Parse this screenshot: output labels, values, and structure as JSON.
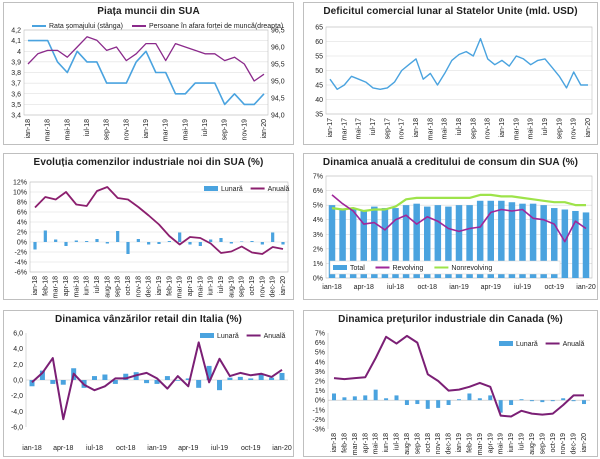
{
  "chart_data": [
    {
      "type": "line",
      "title": "Piața muncii din SUA",
      "categories": [
        "ian-18",
        "feb-18",
        "mar-18",
        "apr-18",
        "mai-18",
        "iun-18",
        "iul-18",
        "aug-18",
        "sep-18",
        "oct-18",
        "nov-18",
        "dec-18",
        "ian-19",
        "feb-19",
        "mar-19",
        "apr-19",
        "mai-19",
        "iun-19",
        "iul-19",
        "aug-19",
        "sep-19",
        "oct-19",
        "nov-19",
        "dec-19",
        "ian-20"
      ],
      "xticks": [
        "ian-18",
        "mar-18",
        "mai-18",
        "iul-18",
        "sep-18",
        "nov-18",
        "ian-19",
        "mar-19",
        "mai-19",
        "iul-19",
        "sep-19",
        "nov-19",
        "ian-20"
      ],
      "y_left": {
        "ylim": [
          3.4,
          4.2
        ],
        "ticks": [
          "4,2",
          "4,1",
          "4",
          "3,9",
          "3,8",
          "3,7",
          "3,6",
          "3,5",
          "3,4"
        ]
      },
      "y_right": {
        "ylim": [
          94.0,
          96.5
        ],
        "ticks": [
          "96,5",
          "96,0",
          "95,5",
          "95,0",
          "94,5",
          "94,0"
        ]
      },
      "series": [
        {
          "name": "Rata șomajului (stânga)",
          "axis": "left",
          "color": "#4aa3df",
          "values": [
            4.1,
            4.1,
            4.1,
            3.9,
            3.8,
            4.0,
            3.9,
            3.9,
            3.7,
            3.7,
            3.7,
            3.9,
            4.0,
            3.8,
            3.8,
            3.6,
            3.6,
            3.7,
            3.7,
            3.7,
            3.5,
            3.6,
            3.5,
            3.5,
            3.6
          ]
        },
        {
          "name": "Persoane în afara forței de muncă(dreapta)",
          "axis": "right",
          "color": "#8b2a8b",
          "values": [
            95.5,
            95.8,
            95.9,
            95.9,
            95.7,
            96.0,
            96.3,
            96.2,
            95.9,
            96.0,
            95.6,
            95.8,
            96.1,
            96.1,
            95.6,
            96.1,
            96.0,
            95.9,
            95.8,
            95.8,
            95.6,
            95.7,
            95.5,
            95.0,
            95.2
          ]
        }
      ]
    },
    {
      "type": "line",
      "title": "Deficitul comercial lunar al Statelor Unite (mld. USD)",
      "categories": [
        "ian-17",
        "feb-17",
        "mar-17",
        "apr-17",
        "mai-17",
        "iun-17",
        "iul-17",
        "aug-17",
        "sep-17",
        "oct-17",
        "nov-17",
        "dec-17",
        "ian-18",
        "feb-18",
        "mar-18",
        "apr-18",
        "mai-18",
        "iun-18",
        "iul-18",
        "aug-18",
        "sep-18",
        "oct-18",
        "nov-18",
        "dec-18",
        "ian-19",
        "feb-19",
        "mar-19",
        "apr-19",
        "mai-19",
        "iun-19",
        "iul-19",
        "aug-19",
        "sep-19",
        "oct-19",
        "nov-19",
        "dec-19",
        "ian-20"
      ],
      "xticks": [
        "ian-17",
        "mar-17",
        "mai-17",
        "iul-17",
        "sep-17",
        "nov-17",
        "ian-18",
        "mar-18",
        "mai-18",
        "iul-18",
        "sep-18",
        "nov-18",
        "ian-19",
        "mar-19",
        "mai-19",
        "iul-19",
        "sep-19",
        "nov-19",
        "ian-20"
      ],
      "ylim": [
        0,
        65
      ],
      "yticks": [
        "65",
        "60",
        "55",
        "50",
        "45",
        "40",
        "35",
        "30",
        "25",
        "20",
        "15",
        "10",
        "5",
        "0"
      ],
      "series": [
        {
          "name": "Deficit",
          "color": "#4aa3df",
          "values": [
            47,
            43.5,
            45,
            48,
            47,
            46,
            44,
            43.5,
            44,
            46,
            50,
            52,
            54,
            47,
            49,
            45,
            49,
            53.5,
            55.5,
            56.5,
            55,
            61,
            54,
            52,
            53.5,
            51.5,
            55,
            54,
            52,
            53.5,
            54,
            51,
            48,
            44,
            49.5,
            45,
            45
          ]
        }
      ]
    },
    {
      "type": "bar+line",
      "title": "Evoluția comenzilor industriale noi din SUA (%)",
      "categories": [
        "ian-18",
        "feb-18",
        "mar-18",
        "apr-18",
        "mai-18",
        "iun-18",
        "iul-18",
        "aug-18",
        "sep-18",
        "oct-18",
        "nov-18",
        "dec-18",
        "ian-19",
        "feb-19",
        "mar-19",
        "apr-19",
        "mai-19",
        "iun-19",
        "iul-19",
        "aug-19",
        "sep-19",
        "oct-19",
        "nov-19",
        "dec-19",
        "ian-20"
      ],
      "ylim": [
        -6,
        12
      ],
      "yticks": [
        "12%",
        "10%",
        "8%",
        "6%",
        "4%",
        "2%",
        "0%",
        "-2%",
        "-4%",
        "-6%"
      ],
      "legend": [
        "Lunară",
        "Anuală"
      ],
      "series": [
        {
          "name": "Lunară",
          "kind": "bar",
          "color": "#4aa3df",
          "values": [
            -1.5,
            2.3,
            0.5,
            -0.8,
            0.3,
            0.2,
            0.6,
            -0.3,
            2.2,
            -2.4,
            0.6,
            -0.5,
            -0.4,
            0.2,
            1.9,
            -0.5,
            -0.8,
            0.5,
            0.8,
            -0.3,
            0.1,
            0.2,
            -0.5,
            1.9,
            -0.5
          ]
        },
        {
          "name": "Anuală",
          "kind": "line",
          "color": "#8b1f6e",
          "values": [
            6.9,
            9.0,
            8.5,
            10.0,
            7.5,
            7.2,
            10.2,
            11.0,
            8.8,
            8.5,
            7.0,
            5.3,
            3.5,
            1.2,
            -0.5,
            1.0,
            0.8,
            -0.3,
            -2.2,
            -1.9,
            -0.9,
            -2.1,
            -2.4,
            -1.0,
            -1.4
          ]
        }
      ]
    },
    {
      "type": "bar+line",
      "title": "Dinamica anuală a creditului de consum din SUA (%)",
      "categories": [
        "ian-18",
        "feb-18",
        "mar-18",
        "apr-18",
        "mai-18",
        "iun-18",
        "iul-18",
        "aug-18",
        "sep-18",
        "oct-18",
        "nov-18",
        "dec-18",
        "ian-19",
        "feb-19",
        "mar-19",
        "apr-19",
        "mai-19",
        "iun-19",
        "iul-19",
        "aug-19",
        "sep-19",
        "oct-19",
        "nov-19",
        "dec-19",
        "ian-20"
      ],
      "xticks": [
        "ian-18",
        "apr-18",
        "iul-18",
        "oct-18",
        "ian-19",
        "apr-19",
        "iul-19",
        "oct-19",
        "ian-20"
      ],
      "ylim": [
        0,
        7
      ],
      "yticks": [
        "7%",
        "6%",
        "5%",
        "4%",
        "3%",
        "2%",
        "1%",
        "0%"
      ],
      "legend": [
        "Total",
        "Revolving",
        "Nonrevolving"
      ],
      "series": [
        {
          "name": "Total",
          "kind": "bar",
          "color": "#4aa3df",
          "values": [
            5.0,
            4.7,
            4.8,
            4.6,
            4.9,
            4.8,
            4.8,
            5.0,
            5.1,
            4.9,
            5.0,
            4.9,
            5.0,
            5.0,
            5.3,
            5.3,
            5.3,
            5.2,
            5.1,
            5.1,
            5.0,
            4.8,
            4.7,
            4.6,
            4.5
          ]
        },
        {
          "name": "Revolving",
          "kind": "line",
          "color": "#a0279a",
          "values": [
            5.7,
            5.1,
            4.6,
            3.7,
            3.8,
            3.3,
            4.0,
            4.3,
            3.7,
            4.2,
            3.9,
            3.4,
            3.2,
            3.4,
            3.5,
            4.5,
            4.7,
            4.6,
            4.7,
            4.1,
            4.0,
            3.7,
            2.5,
            3.9,
            3.4
          ]
        },
        {
          "name": "Nonrevolving",
          "kind": "line",
          "color": "#9ee34a",
          "values": [
            4.8,
            4.7,
            4.8,
            4.6,
            4.7,
            4.7,
            4.9,
            5.4,
            5.5,
            5.5,
            5.5,
            5.5,
            5.5,
            5.5,
            5.7,
            5.7,
            5.6,
            5.6,
            5.5,
            5.4,
            5.3,
            5.2,
            5.2,
            5.0,
            5.0
          ]
        }
      ]
    },
    {
      "type": "bar+line",
      "title": "Dinamica vânzărilor retail din Italia (%)",
      "categories": [
        "ian-18",
        "feb-18",
        "mar-18",
        "apr-18",
        "mai-18",
        "iun-18",
        "iul-18",
        "aug-18",
        "sep-18",
        "oct-18",
        "nov-18",
        "dec-18",
        "ian-19",
        "feb-19",
        "mar-19",
        "apr-19",
        "mai-19",
        "iun-19",
        "iul-19",
        "aug-19",
        "sep-19",
        "oct-19",
        "nov-19",
        "dec-19",
        "ian-20"
      ],
      "xticks": [
        "ian-18",
        "apr-18",
        "iul-18",
        "oct-18",
        "ian-19",
        "apr-19",
        "iul-19",
        "oct-19",
        "ian-20"
      ],
      "ylim": [
        -6,
        6
      ],
      "yticks": [
        "6,0",
        "4,0",
        "2,0",
        "0,0",
        "-2,0",
        "-4,0",
        "-6,0"
      ],
      "legend": [
        "Lunară",
        "Anuală"
      ],
      "series": [
        {
          "name": "Lunară",
          "kind": "bar",
          "color": "#4aa3df",
          "values": [
            -0.8,
            1.2,
            -0.5,
            -0.6,
            1.5,
            -1.0,
            0.5,
            0.7,
            -0.5,
            0.8,
            1.0,
            -0.4,
            -0.5,
            0.5,
            -0.1,
            0.2,
            -1.0,
            1.8,
            -1.3,
            0.3,
            0.4,
            0.2,
            0.7,
            0.3,
            0.9
          ]
        },
        {
          "name": "Anuală",
          "kind": "line",
          "color": "#7b1f75",
          "values": [
            -0.3,
            0.9,
            2.8,
            -5.0,
            0.8,
            -0.6,
            -1.3,
            -0.8,
            0.2,
            0.2,
            0.6,
            0.9,
            0.2,
            -1.1,
            0.5,
            -0.8,
            4.8,
            -0.3,
            2.7,
            0.5,
            0.9,
            0.6,
            0.8,
            0.4,
            1.3
          ]
        }
      ]
    },
    {
      "type": "bar+line",
      "title": "Dinamica prețurilor industriale din Canada (%)",
      "categories": [
        "ian-18",
        "feb-18",
        "mar-18",
        "apr-18",
        "mai-18",
        "iun-18",
        "iul-18",
        "aug-18",
        "sep-18",
        "oct-18",
        "nov-18",
        "dec-18",
        "ian-19",
        "feb-19",
        "mar-19",
        "apr-19",
        "mai-19",
        "iun-19",
        "iul-19",
        "aug-19",
        "sep-19",
        "oct-19",
        "nov-19",
        "dec-19",
        "ian-20"
      ],
      "ylim": [
        -3,
        7
      ],
      "yticks": [
        "7%",
        "6%",
        "5%",
        "4%",
        "3%",
        "2%",
        "1%",
        "0%",
        "-1%",
        "-2%",
        "-3%"
      ],
      "legend": [
        "Lunară",
        "Anuală"
      ],
      "series": [
        {
          "name": "Lunară",
          "kind": "bar",
          "color": "#4aa3df",
          "values": [
            0.7,
            0.3,
            0.4,
            0.5,
            1.1,
            0.2,
            0.5,
            -0.5,
            -0.4,
            -0.9,
            -0.8,
            -0.5,
            0.1,
            0.7,
            0.2,
            0.5,
            -1.3,
            -0.5,
            0.1,
            -0.1,
            -0.2,
            -0.1,
            0.2,
            -0.1,
            -0.4
          ]
        },
        {
          "name": "Anuală",
          "kind": "line",
          "color": "#7b1f75",
          "values": [
            2.3,
            2.2,
            2.3,
            2.4,
            4.4,
            6.6,
            5.9,
            6.7,
            6.0,
            2.7,
            2.0,
            1.0,
            1.1,
            1.4,
            1.8,
            1.4,
            -1.6,
            -1.7,
            -1.1,
            -1.4,
            -1.5,
            -1.4,
            -0.5,
            0.5,
            0.5
          ]
        }
      ]
    }
  ]
}
